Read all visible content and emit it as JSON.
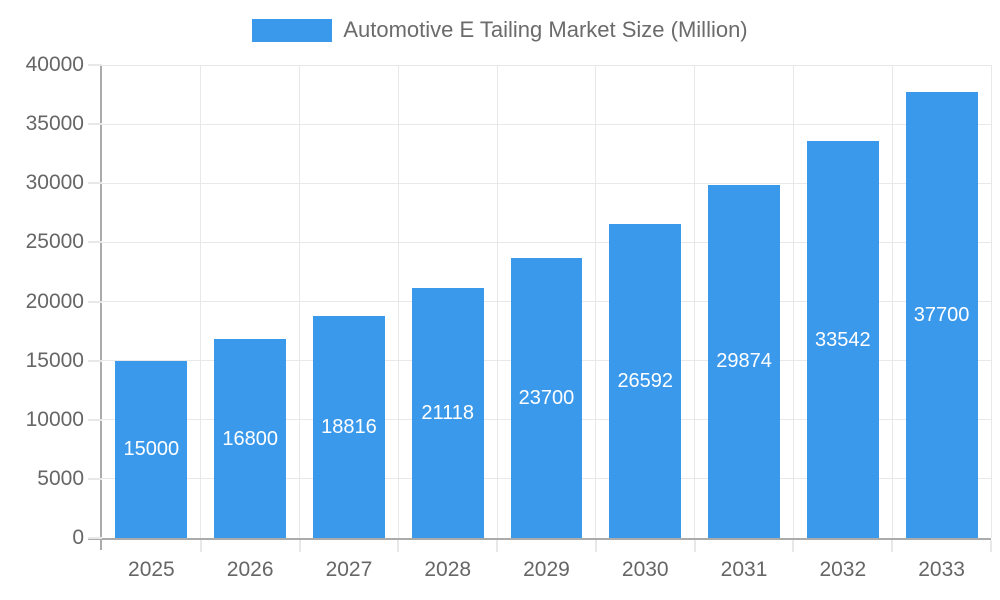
{
  "legend": {
    "label": "Automotive E Tailing Market Size (Million)"
  },
  "chart_data": {
    "type": "bar",
    "title": "Automotive E Tailing Market Size (Million)",
    "categories": [
      "2025",
      "2026",
      "2027",
      "2028",
      "2029",
      "2030",
      "2031",
      "2032",
      "2033"
    ],
    "values": [
      15000,
      16800,
      18816,
      21118,
      23700,
      26592,
      29874,
      33542,
      37700
    ],
    "xlabel": "",
    "ylabel": "",
    "ylim": [
      0,
      40000
    ],
    "ytick_step": 5000,
    "grid": true,
    "legend_position": "top-center",
    "value_labels": "inside-center",
    "colors": {
      "bar": "#3B99EC",
      "axis_line": "#ABABAB",
      "gridline": "#E8E8E8",
      "tick_text": "#666666",
      "legend_text": "#6B6B6B",
      "value_label_text": "#FFFFFF",
      "background": "#FFFFFF"
    }
  }
}
